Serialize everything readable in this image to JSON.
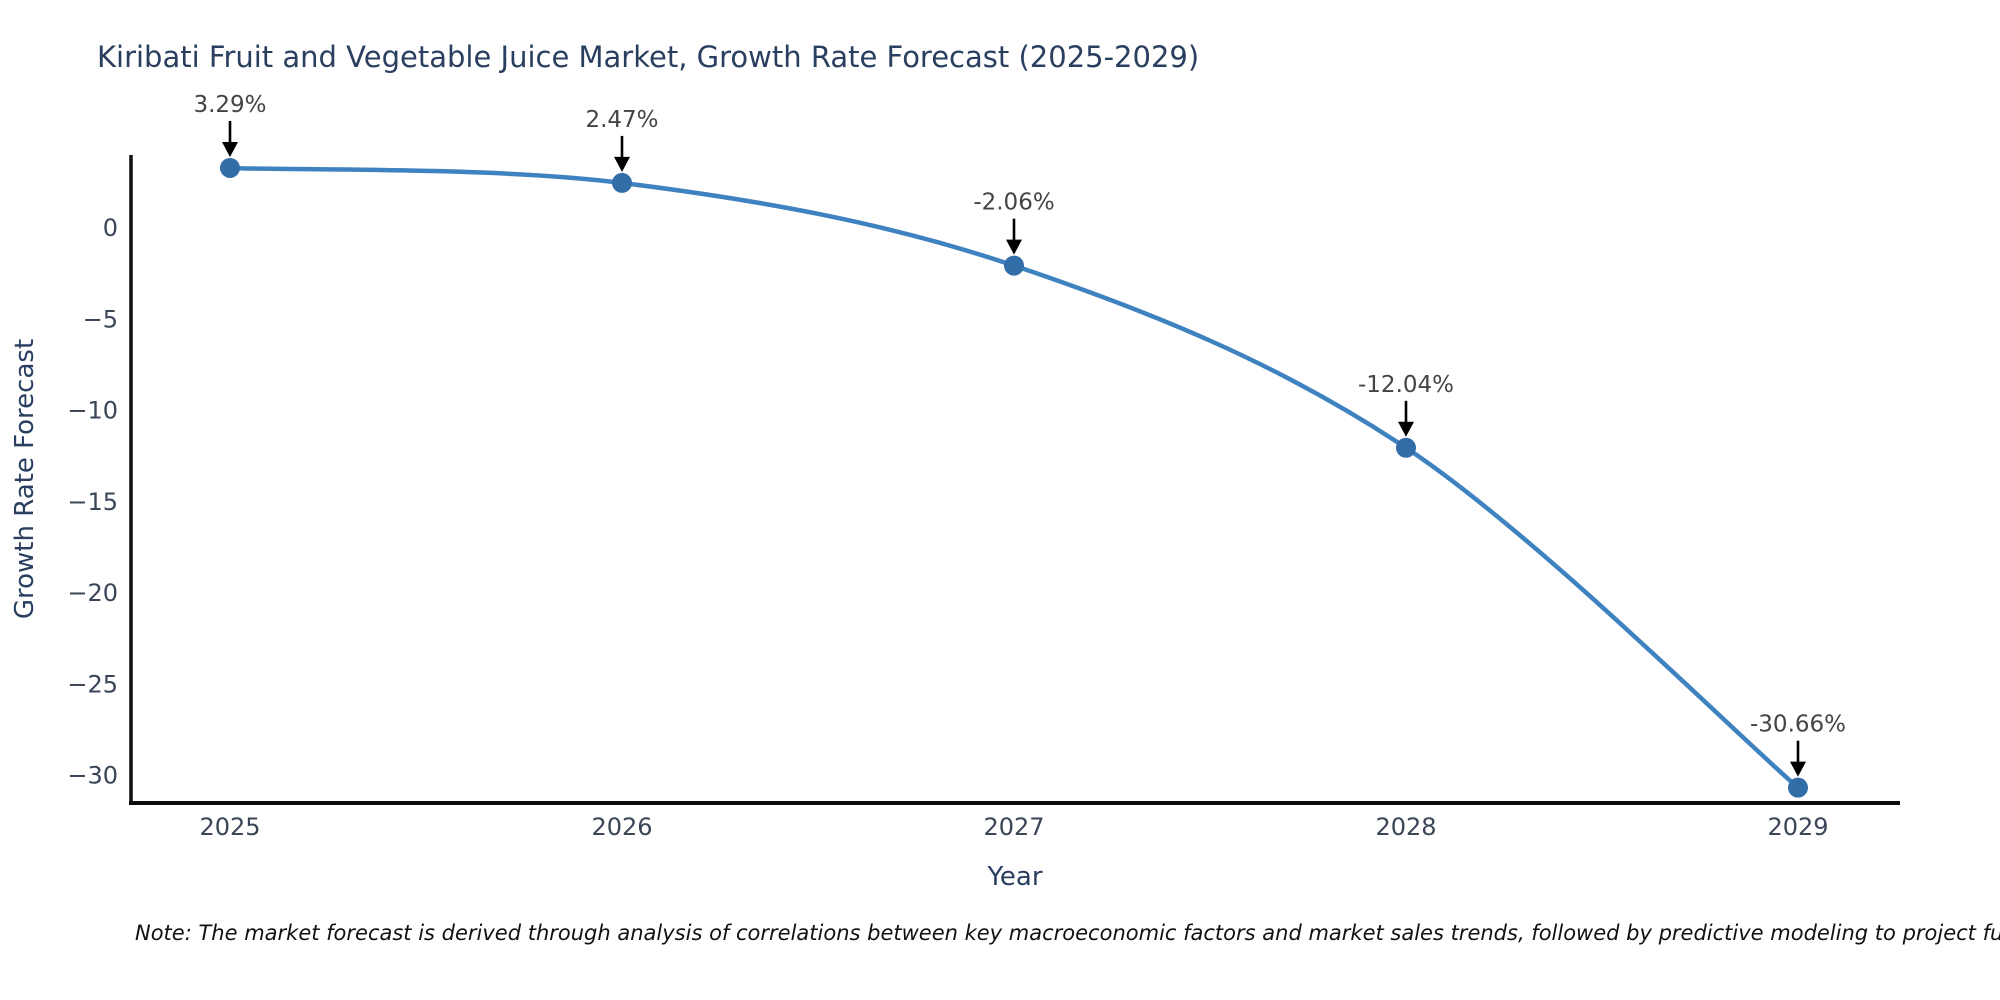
{
  "title": "Kiribati Fruit and Vegetable Juice Market, Growth Rate Forecast (2025-2029)",
  "note": "Note: The market forecast is derived through analysis of correlations between key macroeconomic factors and market sales trends, followed by predictive modeling to project future sales.",
  "chart_data": {
    "type": "line",
    "title": "Kiribati Fruit and Vegetable Juice Market, Growth Rate Forecast (2025-2029)",
    "xlabel": "Year",
    "ylabel": "Growth Rate Forecast",
    "x": [
      2025,
      2026,
      2027,
      2028,
      2029
    ],
    "categories": [
      "2025",
      "2026",
      "2027",
      "2028",
      "2029"
    ],
    "values": [
      3.29,
      2.47,
      -2.06,
      -12.04,
      -30.66
    ],
    "point_labels": [
      "3.29%",
      "2.47%",
      "-2.06%",
      "-12.04%",
      "-30.66%"
    ],
    "yticks": [
      0,
      -5,
      -10,
      -15,
      -20,
      -25,
      -30
    ],
    "ylim": [
      -31.5,
      4.0
    ],
    "grid": false,
    "legend": false,
    "line_shape": "spline",
    "colors": {
      "line": "#3f82c0",
      "marker": "#336da8",
      "axis": "#0d0d0d",
      "annotation_text": "#444444",
      "annotation_arrow": "#000000",
      "title_text": "#2a3f5f",
      "tick_text": "#3b4558"
    }
  }
}
